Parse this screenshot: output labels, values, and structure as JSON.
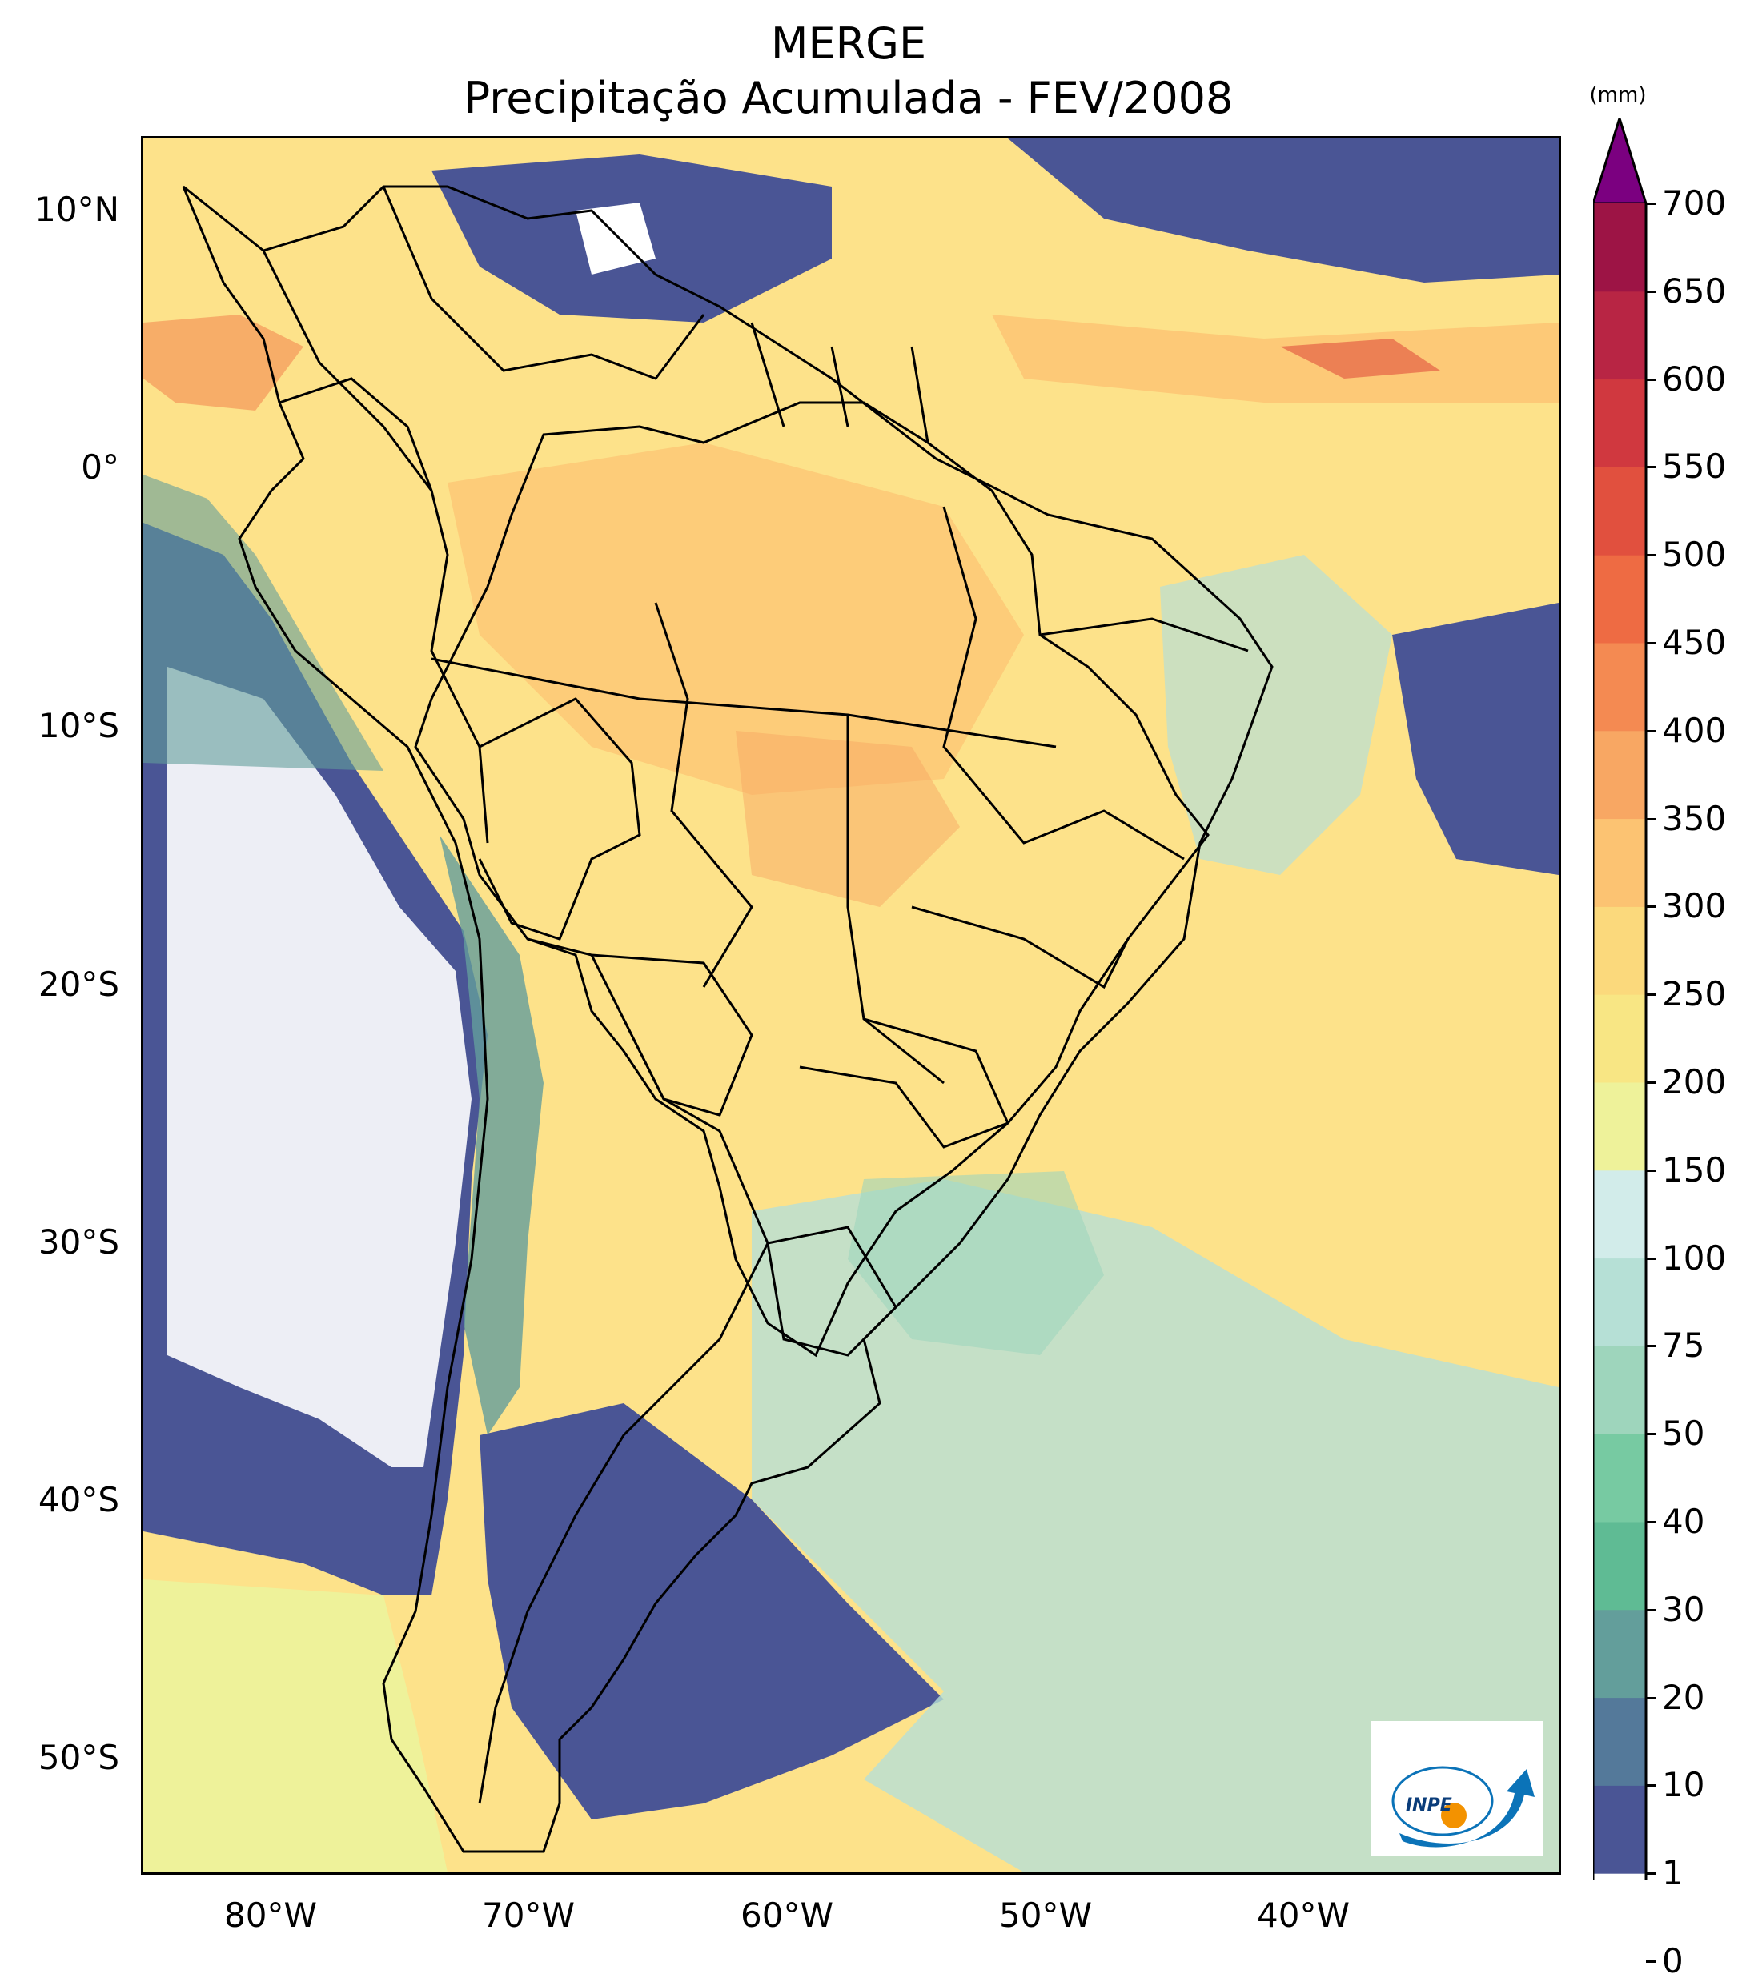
{
  "title": {
    "line1": "MERGE",
    "line2": "Precipitação Acumulada - FEV/2008"
  },
  "map": {
    "type": "precipitation-map",
    "background_color": "#fde28a",
    "border_color": "#000000",
    "region": "South America",
    "lon_range": [
      -85,
      -30
    ],
    "lat_range": [
      -56,
      13
    ],
    "latitude_ticks": [
      {
        "label": "10°N",
        "value": 10
      },
      {
        "label": "0°",
        "value": 0
      },
      {
        "label": "10°S",
        "value": -10
      },
      {
        "label": "20°S",
        "value": -20
      },
      {
        "label": "30°S",
        "value": -30
      },
      {
        "label": "40°S",
        "value": -40
      },
      {
        "label": "50°S",
        "value": -50
      }
    ],
    "longitude_ticks": [
      {
        "label": "80°W",
        "value": -80
      },
      {
        "label": "70°W",
        "value": -70
      },
      {
        "label": "60°W",
        "value": -60
      },
      {
        "label": "50°W",
        "value": -50
      },
      {
        "label": "40°W",
        "value": -40
      }
    ]
  },
  "colorbar": {
    "unit": "(mm)",
    "extend": "max",
    "extend_color": "#7b0080",
    "levels": [
      {
        "label": "0",
        "color": "#ffffff"
      },
      {
        "label": "1",
        "color": "#4a5595"
      },
      {
        "label": "10",
        "color": "#54799a"
      },
      {
        "label": "20",
        "color": "#639e9b"
      },
      {
        "label": "30",
        "color": "#5fbb94"
      },
      {
        "label": "40",
        "color": "#77caa2"
      },
      {
        "label": "50",
        "color": "#9ed5bc"
      },
      {
        "label": "75",
        "color": "#b6e0d6"
      },
      {
        "label": "100",
        "color": "#d2ecea"
      },
      {
        "label": "150",
        "color": "#eef29a"
      },
      {
        "label": "200",
        "color": "#f8e684"
      },
      {
        "label": "250",
        "color": "#fbd97c"
      },
      {
        "label": "300",
        "color": "#fcc372"
      },
      {
        "label": "350",
        "color": "#f8a763"
      },
      {
        "label": "400",
        "color": "#f48a52"
      },
      {
        "label": "450",
        "color": "#ee6b43"
      },
      {
        "label": "500",
        "color": "#e1503e"
      },
      {
        "label": "550",
        "color": "#d0383f"
      },
      {
        "label": "600",
        "color": "#b82544"
      },
      {
        "label": "650",
        "color": "#9d1445"
      },
      {
        "label": "700",
        "color": ""
      }
    ]
  },
  "logo": {
    "text": "INPE",
    "arrow_color": "#0b73b8",
    "dot_color": "#f39200"
  }
}
